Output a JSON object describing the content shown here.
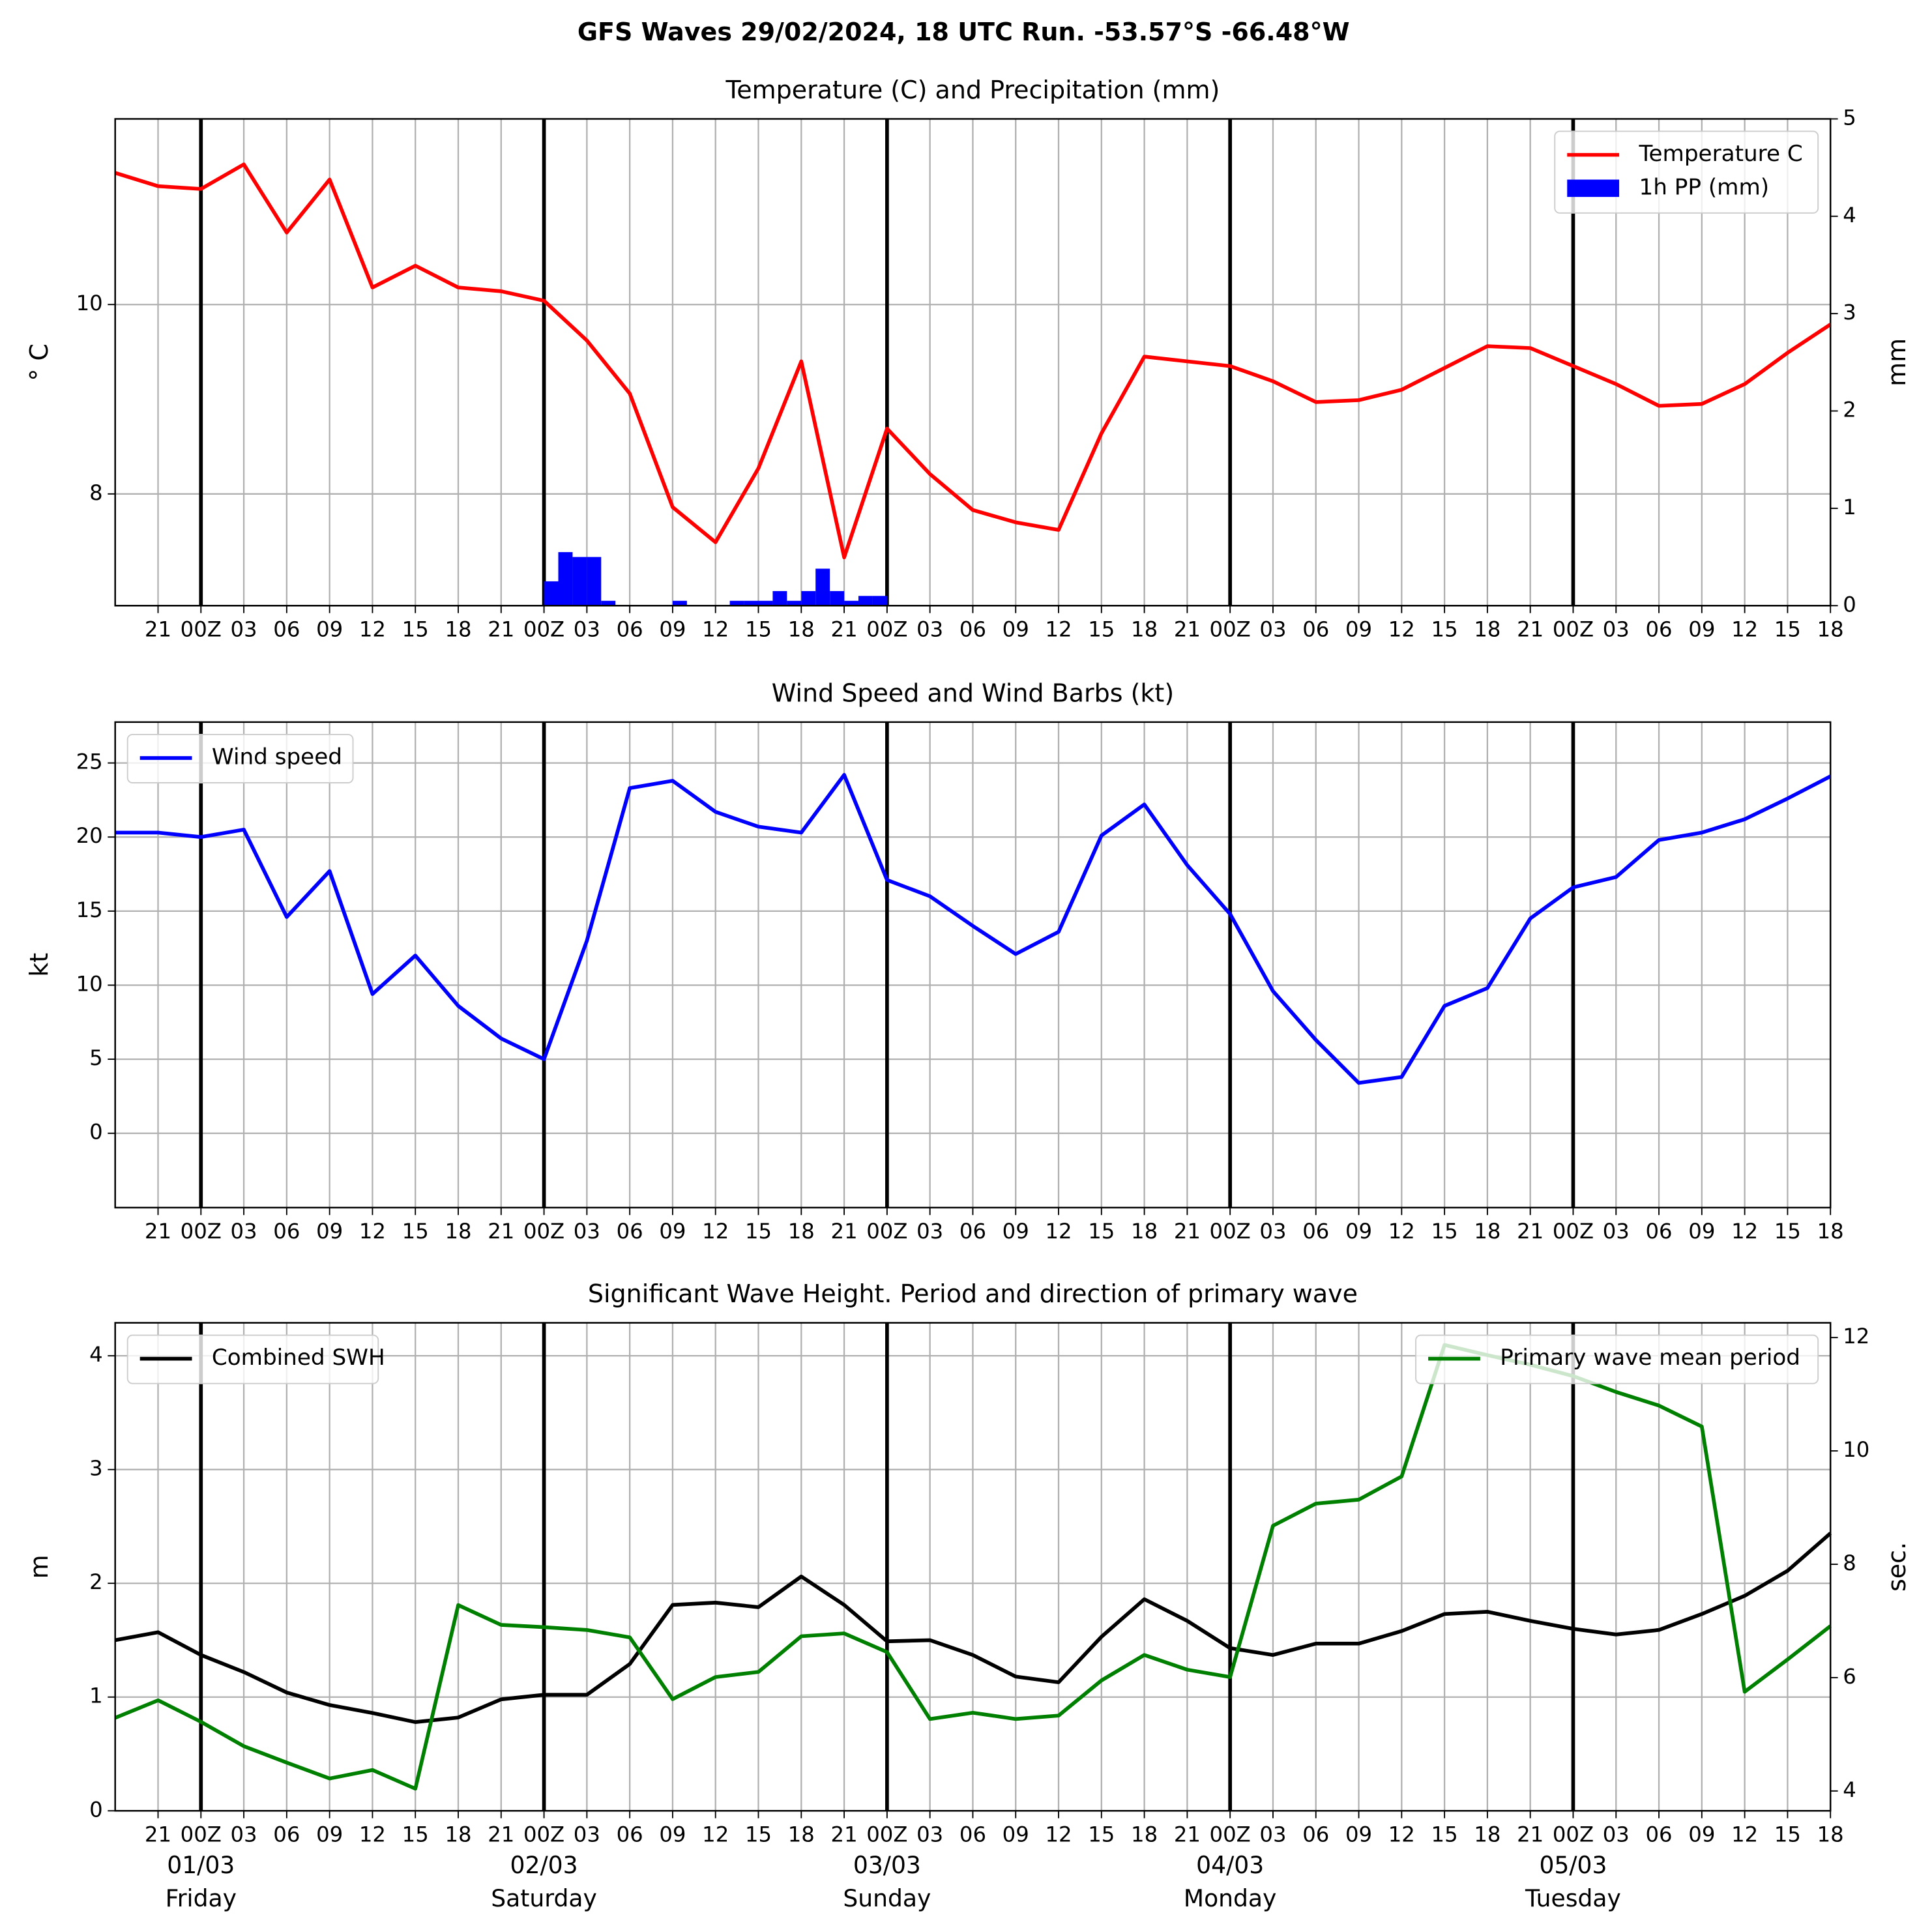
{
  "title": "GFS Waves 29/02/2024, 18 UTC Run. -53.57°S -66.48°W",
  "chart_data": [
    {
      "type": "line",
      "title": "Temperature (C) and Precipitation (mm)",
      "x": [
        0,
        3,
        6,
        9,
        12,
        15,
        18,
        21,
        24,
        27,
        30,
        33,
        36,
        39,
        42,
        45,
        48,
        51,
        54,
        57,
        60,
        63,
        66,
        69,
        72,
        75,
        78,
        81,
        84,
        87,
        90,
        93,
        96,
        99,
        102,
        105,
        108,
        111,
        114,
        117,
        120
      ],
      "xlim": [
        0,
        120
      ],
      "xticks": [
        {
          "value": 3,
          "label": "21"
        },
        {
          "value": 6,
          "label": "00Z"
        },
        {
          "value": 9,
          "label": "03"
        },
        {
          "value": 12,
          "label": "06"
        },
        {
          "value": 15,
          "label": "09"
        },
        {
          "value": 18,
          "label": "12"
        },
        {
          "value": 21,
          "label": "15"
        },
        {
          "value": 24,
          "label": "18"
        },
        {
          "value": 27,
          "label": "21"
        },
        {
          "value": 30,
          "label": "00Z"
        },
        {
          "value": 33,
          "label": "03"
        },
        {
          "value": 36,
          "label": "06"
        },
        {
          "value": 39,
          "label": "09"
        },
        {
          "value": 42,
          "label": "12"
        },
        {
          "value": 45,
          "label": "15"
        },
        {
          "value": 48,
          "label": "18"
        },
        {
          "value": 51,
          "label": "21"
        },
        {
          "value": 54,
          "label": "00Z"
        },
        {
          "value": 57,
          "label": "03"
        },
        {
          "value": 60,
          "label": "06"
        },
        {
          "value": 63,
          "label": "09"
        },
        {
          "value": 66,
          "label": "12"
        },
        {
          "value": 69,
          "label": "15"
        },
        {
          "value": 72,
          "label": "18"
        },
        {
          "value": 75,
          "label": "21"
        },
        {
          "value": 78,
          "label": "00Z"
        },
        {
          "value": 81,
          "label": "03"
        },
        {
          "value": 84,
          "label": "06"
        },
        {
          "value": 87,
          "label": "09"
        },
        {
          "value": 90,
          "label": "12"
        },
        {
          "value": 93,
          "label": "15"
        },
        {
          "value": 96,
          "label": "18"
        },
        {
          "value": 99,
          "label": "21"
        },
        {
          "value": 102,
          "label": "00Z"
        },
        {
          "value": 105,
          "label": "03"
        },
        {
          "value": 108,
          "label": "06"
        },
        {
          "value": 111,
          "label": "09"
        },
        {
          "value": 114,
          "label": "12"
        },
        {
          "value": 117,
          "label": "15"
        },
        {
          "value": 120,
          "label": "18"
        }
      ],
      "vlines": [
        6,
        30,
        54,
        78,
        102
      ],
      "ylabel": "° C",
      "ylim": [
        6.82,
        11.96
      ],
      "yticks": [
        8,
        10
      ],
      "y2label": "mm",
      "y2lim": [
        0,
        5
      ],
      "y2ticks": [
        0,
        1,
        2,
        3,
        4,
        5
      ],
      "grid": true,
      "legend": "upper right",
      "series": [
        {
          "name": "Temperature C",
          "color": "#ff0000",
          "values": [
            11.39,
            11.25,
            11.22,
            11.48,
            10.76,
            11.32,
            10.18,
            10.41,
            10.18,
            10.14,
            10.04,
            9.62,
            9.06,
            7.86,
            7.49,
            8.27,
            9.4,
            7.33,
            8.69,
            8.21,
            7.83,
            7.7,
            7.62,
            8.64,
            9.45,
            9.4,
            9.35,
            9.19,
            8.97,
            8.99,
            9.1,
            9.33,
            9.56,
            9.54,
            9.35,
            9.16,
            8.93,
            8.95,
            9.16,
            9.49,
            9.79
          ]
        },
        {
          "name": "1h PP (mm)",
          "color": "#0000ff",
          "type": "bar",
          "axis": "y2",
          "x": [
            30,
            31,
            32,
            33,
            34,
            39,
            43,
            44,
            45,
            46,
            47,
            48,
            49,
            50,
            51,
            52,
            53
          ],
          "values": [
            0.25,
            0.55,
            0.5,
            0.5,
            0.05,
            0.05,
            0.05,
            0.05,
            0.05,
            0.15,
            0.05,
            0.15,
            0.38,
            0.15,
            0.05,
            0.1,
            0.1
          ]
        }
      ]
    },
    {
      "type": "line",
      "title": "Wind Speed and Wind Barbs (kt)",
      "x": [
        0,
        3,
        6,
        9,
        12,
        15,
        18,
        21,
        24,
        27,
        30,
        33,
        36,
        39,
        42,
        45,
        48,
        51,
        54,
        57,
        60,
        63,
        66,
        69,
        72,
        75,
        78,
        81,
        84,
        87,
        90,
        93,
        96,
        99,
        102,
        105,
        108,
        111,
        114,
        117,
        120
      ],
      "xlim": [
        0,
        120
      ],
      "xticks": [
        {
          "value": 3,
          "label": "21"
        },
        {
          "value": 6,
          "label": "00Z"
        },
        {
          "value": 9,
          "label": "03"
        },
        {
          "value": 12,
          "label": "06"
        },
        {
          "value": 15,
          "label": "09"
        },
        {
          "value": 18,
          "label": "12"
        },
        {
          "value": 21,
          "label": "15"
        },
        {
          "value": 24,
          "label": "18"
        },
        {
          "value": 27,
          "label": "21"
        },
        {
          "value": 30,
          "label": "00Z"
        },
        {
          "value": 33,
          "label": "03"
        },
        {
          "value": 36,
          "label": "06"
        },
        {
          "value": 39,
          "label": "09"
        },
        {
          "value": 42,
          "label": "12"
        },
        {
          "value": 45,
          "label": "15"
        },
        {
          "value": 48,
          "label": "18"
        },
        {
          "value": 51,
          "label": "21"
        },
        {
          "value": 54,
          "label": "00Z"
        },
        {
          "value": 57,
          "label": "03"
        },
        {
          "value": 60,
          "label": "06"
        },
        {
          "value": 63,
          "label": "09"
        },
        {
          "value": 66,
          "label": "12"
        },
        {
          "value": 69,
          "label": "15"
        },
        {
          "value": 72,
          "label": "18"
        },
        {
          "value": 75,
          "label": "21"
        },
        {
          "value": 78,
          "label": "00Z"
        },
        {
          "value": 81,
          "label": "03"
        },
        {
          "value": 84,
          "label": "06"
        },
        {
          "value": 87,
          "label": "09"
        },
        {
          "value": 90,
          "label": "12"
        },
        {
          "value": 93,
          "label": "15"
        },
        {
          "value": 96,
          "label": "18"
        },
        {
          "value": 99,
          "label": "21"
        },
        {
          "value": 102,
          "label": "00Z"
        },
        {
          "value": 105,
          "label": "03"
        },
        {
          "value": 108,
          "label": "06"
        },
        {
          "value": 111,
          "label": "09"
        },
        {
          "value": 114,
          "label": "12"
        },
        {
          "value": 117,
          "label": "15"
        },
        {
          "value": 120,
          "label": "18"
        }
      ],
      "vlines": [
        6,
        30,
        54,
        78,
        102
      ],
      "ylabel": "kt",
      "ylim": [
        -5.02,
        27.76
      ],
      "yticks": [
        0,
        5,
        10,
        15,
        20,
        25
      ],
      "grid": true,
      "legend": "upper left",
      "series": [
        {
          "name": "Wind speed",
          "color": "#0000ff",
          "values": [
            20.3,
            20.3,
            20.0,
            20.5,
            14.6,
            17.7,
            9.4,
            12.0,
            8.6,
            6.4,
            5.0,
            13.0,
            23.3,
            23.8,
            21.7,
            20.7,
            20.3,
            24.2,
            17.1,
            16.0,
            14.0,
            12.1,
            13.6,
            20.1,
            22.2,
            18.1,
            14.8,
            9.6,
            6.3,
            3.4,
            3.8,
            8.6,
            9.8,
            14.5,
            16.6,
            17.3,
            19.8,
            20.3,
            21.2,
            22.6,
            24.1
          ]
        }
      ]
    },
    {
      "type": "line",
      "title": "Significant Wave Height. Period and direction of primary wave",
      "x": [
        0,
        3,
        6,
        9,
        12,
        15,
        18,
        21,
        24,
        27,
        30,
        33,
        36,
        39,
        42,
        45,
        48,
        51,
        54,
        57,
        60,
        63,
        66,
        69,
        72,
        75,
        78,
        81,
        84,
        87,
        90,
        93,
        96,
        99,
        102,
        105,
        108,
        111,
        114,
        117,
        120
      ],
      "xlim": [
        0,
        120
      ],
      "xticks": [
        {
          "value": 3,
          "label": "21"
        },
        {
          "value": 6,
          "label": "00Z"
        },
        {
          "value": 9,
          "label": "03"
        },
        {
          "value": 12,
          "label": "06"
        },
        {
          "value": 15,
          "label": "09"
        },
        {
          "value": 18,
          "label": "12"
        },
        {
          "value": 21,
          "label": "15"
        },
        {
          "value": 24,
          "label": "18"
        },
        {
          "value": 27,
          "label": "21"
        },
        {
          "value": 30,
          "label": "00Z"
        },
        {
          "value": 33,
          "label": "03"
        },
        {
          "value": 36,
          "label": "06"
        },
        {
          "value": 39,
          "label": "09"
        },
        {
          "value": 42,
          "label": "12"
        },
        {
          "value": 45,
          "label": "15"
        },
        {
          "value": 48,
          "label": "18"
        },
        {
          "value": 51,
          "label": "21"
        },
        {
          "value": 54,
          "label": "00Z"
        },
        {
          "value": 57,
          "label": "03"
        },
        {
          "value": 60,
          "label": "06"
        },
        {
          "value": 63,
          "label": "09"
        },
        {
          "value": 66,
          "label": "12"
        },
        {
          "value": 69,
          "label": "15"
        },
        {
          "value": 72,
          "label": "18"
        },
        {
          "value": 75,
          "label": "21"
        },
        {
          "value": 78,
          "label": "00Z"
        },
        {
          "value": 81,
          "label": "03"
        },
        {
          "value": 84,
          "label": "06"
        },
        {
          "value": 87,
          "label": "09"
        },
        {
          "value": 90,
          "label": "12"
        },
        {
          "value": 93,
          "label": "15"
        },
        {
          "value": 96,
          "label": "18"
        },
        {
          "value": 99,
          "label": "21"
        },
        {
          "value": 102,
          "label": "00Z"
        },
        {
          "value": 105,
          "label": "03"
        },
        {
          "value": 108,
          "label": "06"
        },
        {
          "value": 111,
          "label": "09"
        },
        {
          "value": 114,
          "label": "12"
        },
        {
          "value": 117,
          "label": "15"
        },
        {
          "value": 120,
          "label": "18"
        }
      ],
      "date_ticks": [
        {
          "value": 6,
          "label": "01/03",
          "day": "Friday"
        },
        {
          "value": 30,
          "label": "02/03",
          "day": "Saturday"
        },
        {
          "value": 54,
          "label": "03/03",
          "day": "Sunday"
        },
        {
          "value": 78,
          "label": "04/03",
          "day": "Monday"
        },
        {
          "value": 102,
          "label": "05/03",
          "day": "Tuesday"
        }
      ],
      "vlines": [
        6,
        30,
        54,
        78,
        102
      ],
      "ylabel": "m",
      "ylim": [
        0,
        4.29
      ],
      "yticks": [
        0,
        1,
        2,
        3,
        4
      ],
      "y2label": "sec.",
      "y2label_color": "#008000",
      "y2lim": [
        3.65,
        12.26
      ],
      "y2ticks": [
        4,
        6,
        8,
        10,
        12
      ],
      "grid": true,
      "legend": "upper left",
      "series": [
        {
          "name": "Combined SWH",
          "color": "#000000",
          "values": [
            1.5,
            1.57,
            1.37,
            1.22,
            1.04,
            0.93,
            0.86,
            0.78,
            0.82,
            0.98,
            1.02,
            1.02,
            1.29,
            1.81,
            1.83,
            1.79,
            2.06,
            1.81,
            1.49,
            1.5,
            1.37,
            1.18,
            1.13,
            1.53,
            1.86,
            1.67,
            1.43,
            1.37,
            1.47,
            1.47,
            1.58,
            1.73,
            1.75,
            1.67,
            1.6,
            1.55,
            1.59,
            1.73,
            1.89,
            2.11,
            2.44
          ]
        },
        {
          "name": "Primary wave mean period",
          "color": "#008000",
          "axis": "y2",
          "legend": "upper right",
          "values": [
            5.29,
            5.6,
            5.22,
            4.79,
            4.5,
            4.22,
            4.37,
            4.04,
            7.28,
            6.93,
            6.89,
            6.84,
            6.71,
            5.62,
            6.01,
            6.1,
            6.73,
            6.78,
            6.45,
            5.27,
            5.38,
            5.27,
            5.33,
            5.95,
            6.4,
            6.14,
            6.01,
            8.68,
            9.07,
            9.14,
            9.55,
            11.87,
            11.69,
            11.52,
            11.32,
            11.04,
            10.8,
            10.43,
            5.75,
            6.32,
            6.91
          ]
        }
      ]
    }
  ]
}
